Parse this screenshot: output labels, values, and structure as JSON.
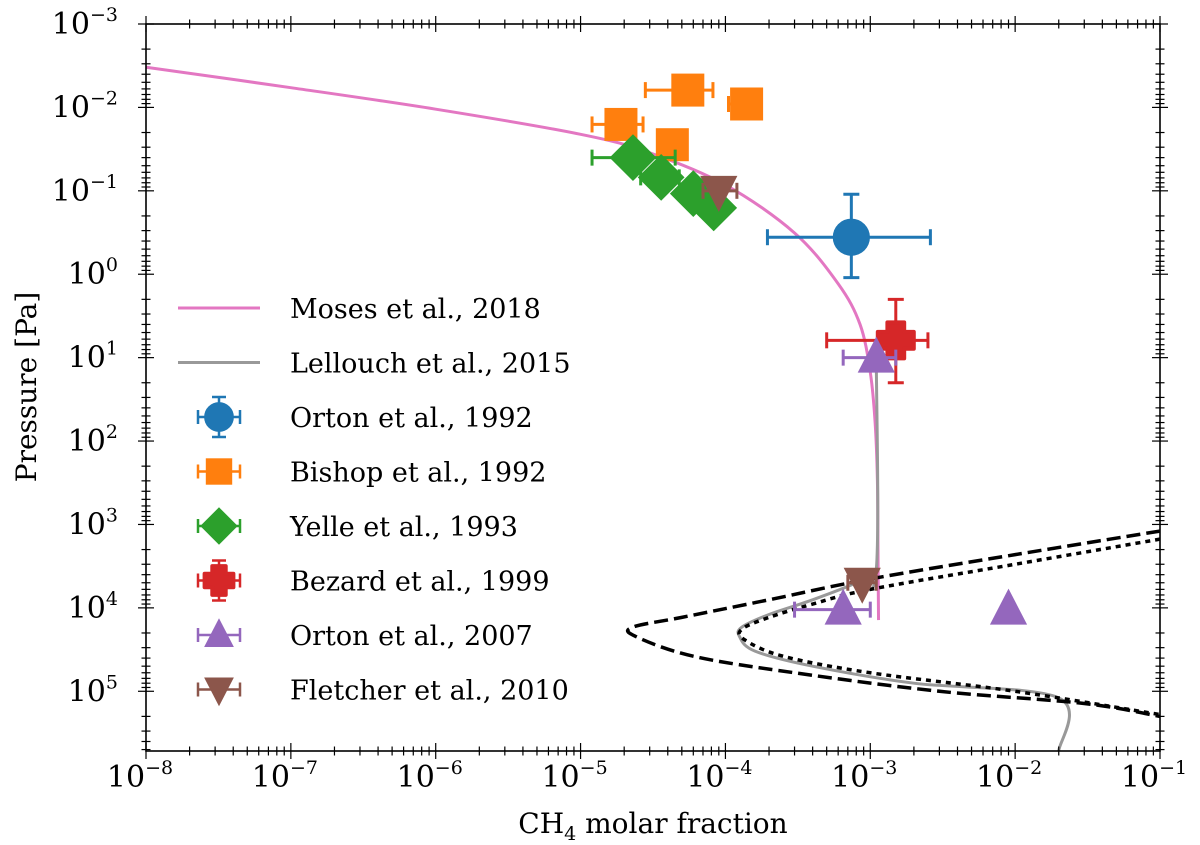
{
  "chart_data": {
    "type": "scatter",
    "title": "",
    "xlabel": "CH4 molar fraction",
    "xlabel_parts": {
      "base": "CH",
      "sub": "4",
      "rest": " molar fraction"
    },
    "ylabel": "Pressure [Pa]",
    "xscale": "log",
    "yscale": "log",
    "xlim": [
      1e-08,
      0.1
    ],
    "ylim": [
      520000.0,
      0.001
    ],
    "y_inverted": true,
    "grid": false,
    "legend_position": "center-left",
    "x_ticks": [
      {
        "base": "10",
        "exp": "−8",
        "value": 1e-08
      },
      {
        "base": "10",
        "exp": "−7",
        "value": 1e-07
      },
      {
        "base": "10",
        "exp": "−6",
        "value": 1e-06
      },
      {
        "base": "10",
        "exp": "−5",
        "value": 1e-05
      },
      {
        "base": "10",
        "exp": "−4",
        "value": 0.0001
      },
      {
        "base": "10",
        "exp": "−3",
        "value": 0.001
      },
      {
        "base": "10",
        "exp": "−2",
        "value": 0.01
      },
      {
        "base": "10",
        "exp": "−1",
        "value": 0.1
      }
    ],
    "y_ticks": [
      {
        "base": "10",
        "exp": "−3",
        "value": 0.001
      },
      {
        "base": "10",
        "exp": "−2",
        "value": 0.01
      },
      {
        "base": "10",
        "exp": "−1",
        "value": 0.1
      },
      {
        "base": "10",
        "exp": "0",
        "value": 1
      },
      {
        "base": "10",
        "exp": "1",
        "value": 10
      },
      {
        "base": "10",
        "exp": "2",
        "value": 100
      },
      {
        "base": "10",
        "exp": "3",
        "value": 1000
      },
      {
        "base": "10",
        "exp": "4",
        "value": 10000
      },
      {
        "base": "10",
        "exp": "5",
        "value": 100000
      }
    ],
    "lines": [
      {
        "name": "Moses et al., 2018",
        "color": "#e377c2",
        "style": "solid",
        "in_legend": true,
        "points": [
          [
            1e-08,
            0.0033
          ],
          [
            1e-07,
            0.0058
          ],
          [
            1e-06,
            0.0105
          ],
          [
            1e-05,
            0.021
          ],
          [
            3e-05,
            0.035
          ],
          [
            0.0001,
            0.085
          ],
          [
            0.0003,
            0.32
          ],
          [
            0.0006,
            1.3
          ],
          [
            0.00085,
            4
          ],
          [
            0.001,
            15
          ],
          [
            0.00108,
            60
          ],
          [
            0.00112,
            300
          ],
          [
            0.00113,
            2000
          ],
          [
            0.00114,
            14000
          ]
        ]
      },
      {
        "name": "Lellouch et al., 2015",
        "color": "#999999",
        "style": "solid",
        "in_legend": true,
        "points": [
          [
            0.0011,
            10
          ],
          [
            0.0011,
            3500
          ],
          [
            0.0008,
            5000
          ],
          [
            0.0004,
            8000
          ],
          [
            0.0002,
            12000
          ],
          [
            0.00013,
            17000
          ],
          [
            0.000125,
            22000
          ],
          [
            0.00016,
            33000
          ],
          [
            0.0004,
            50000
          ],
          [
            0.002,
            80000
          ],
          [
            0.02,
            120000
          ],
          [
            0.02,
            520000
          ]
        ]
      },
      {
        "name": "dashed boundary",
        "color": "#000000",
        "style": "dashed",
        "in_legend": false,
        "points": [
          [
            0.1,
            1200
          ],
          [
            0.01,
            2300
          ],
          [
            0.001,
            4500
          ],
          [
            0.0002,
            8000
          ],
          [
            5e-05,
            13000
          ],
          [
            2.3e-05,
            17000
          ],
          [
            2.4e-05,
            22000
          ],
          [
            6e-05,
            38000
          ],
          [
            0.0003,
            60000
          ],
          [
            0.003,
            100000
          ],
          [
            0.03,
            140000
          ],
          [
            0.1,
            200000
          ]
        ]
      },
      {
        "name": "dotted boundary",
        "color": "#000000",
        "style": "dotted",
        "in_legend": false,
        "points": [
          [
            0.1,
            1500
          ],
          [
            0.01,
            3000
          ],
          [
            0.001,
            6000
          ],
          [
            0.0004,
            9000
          ],
          [
            0.0002,
            13000
          ],
          [
            0.00013,
            18000
          ],
          [
            0.000135,
            24000
          ],
          [
            0.00025,
            38000
          ],
          [
            0.001,
            60000
          ],
          [
            0.01,
            100000
          ],
          [
            0.1,
            190000
          ]
        ]
      }
    ],
    "series": [
      {
        "name": "Orton et al., 1992",
        "color": "#1f77b4",
        "marker": "circle",
        "points": [
          {
            "x": 0.00074,
            "y": 0.36,
            "xerr": [
              0.000195,
              0.0026
            ],
            "yerr": [
              0.11,
              1.1
            ]
          }
        ]
      },
      {
        "name": "Bishop et al., 1992",
        "color": "#ff7f0e",
        "marker": "square",
        "points": [
          {
            "x": 5.5e-05,
            "y": 0.0062,
            "xerr": [
              2.8e-05,
              8.2e-05
            ]
          },
          {
            "x": 0.00014,
            "y": 0.0091,
            "xerr": [
              0.000105,
              0.00017
            ]
          },
          {
            "x": 1.9e-05,
            "y": 0.016,
            "xerr": [
              1.2e-05,
              2.7e-05
            ]
          },
          {
            "x": 4.3e-05,
            "y": 0.028
          }
        ]
      },
      {
        "name": "Yelle et al., 1993",
        "color": "#2ca02c",
        "marker": "diamond",
        "points": [
          {
            "x": 2.3e-05,
            "y": 0.04,
            "xerr": [
              1.2e-05,
              4.5e-05
            ]
          },
          {
            "x": 3.6e-05,
            "y": 0.069,
            "xerr": [
              2.6e-05,
              4.8e-05
            ]
          },
          {
            "x": 6e-05,
            "y": 0.108
          },
          {
            "x": 8.3e-05,
            "y": 0.16
          }
        ]
      },
      {
        "name": "Bezard et al., 1999",
        "color": "#d62728",
        "marker": "plus-filled",
        "points": [
          {
            "x": 0.0015,
            "y": 6.2,
            "xerr": [
              0.0005,
              0.0025
            ],
            "yerr": [
              2.0,
              20
            ]
          }
        ]
      },
      {
        "name": "Orton et al., 2007",
        "color": "#9467bd",
        "marker": "triangle-up",
        "points": [
          {
            "x": 0.0011,
            "y": 10,
            "xerr": [
              0.00065,
              0.0015
            ]
          },
          {
            "x": 0.00065,
            "y": 10500,
            "xerr": [
              0.0003,
              0.001
            ]
          },
          {
            "x": 0.009,
            "y": 10500
          }
        ]
      },
      {
        "name": "Fletcher et al., 2010",
        "color": "#8c564b",
        "marker": "triangle-down",
        "points": [
          {
            "x": 9e-05,
            "y": 0.1,
            "xerr": [
              7e-05,
              0.00012
            ]
          },
          {
            "x": 0.00088,
            "y": 5000,
            "xerr": [
              0.0007,
              0.0011
            ]
          }
        ]
      }
    ]
  }
}
